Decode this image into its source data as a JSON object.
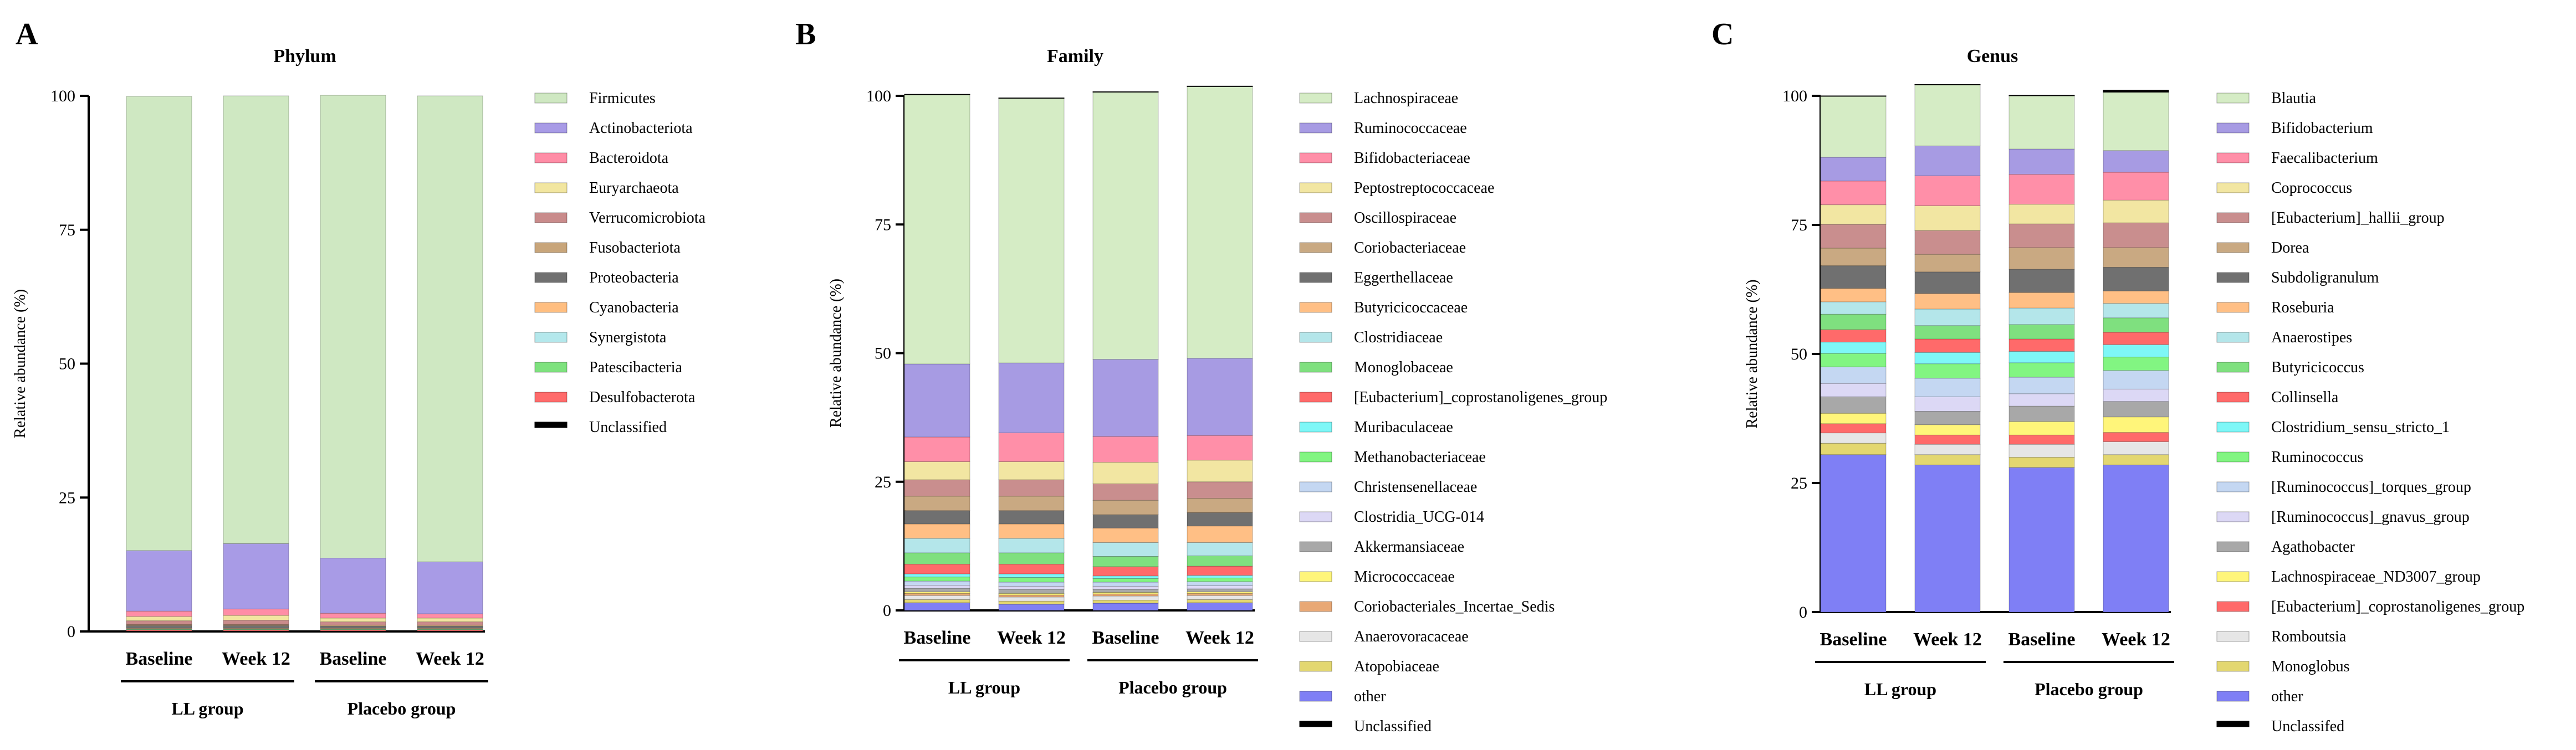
{
  "colors": {
    "Firmicutes": "#cfe8c2",
    "Actinobacteriota": "#a89be6",
    "Bacteroidota": "#ff8da6",
    "Euryarchaeota": "#f2e6a0",
    "Verrucomicrobiota": "#c98b8b",
    "Fusobacteriota": "#c8a57a",
    "Proteobacteria": "#707070",
    "Cyanobacteria": "#ffbe80",
    "Synergistota": "#b4e8ec",
    "Patescibacteria": "#7ee27e",
    "Desulfobacterota": "#ff6b6b",
    "Unclassified": "#000000",
    "Lachnospiraceae": "#d5ecc5",
    "Ruminococcaceae": "#a79be3",
    "Bifidobacteriaceae": "#ff8fa8",
    "Peptostreptococcaceae": "#f2e6a2",
    "Oscillospiraceae": "#c98e8e",
    "Coriobacteriaceae": "#c9a982",
    "Eggerthellaceae": "#707070",
    "Butyricicoccaceae": "#ffbf85",
    "Clostridiaceae": "#b4e6ea",
    "Monoglobaceae": "#7fe07f",
    "[Eubacterium]_coprostanoligenes_group": "#ff6a6a",
    "Muribaculaceae": "#7ef7f7",
    "Methanobacteriaceae": "#82f582",
    "Christensenellaceae": "#c4d7f2",
    "Clostridia_UCG-014": "#dcd8f5",
    "Akkermansiaceae": "#a8a8a8",
    "Micrococcaceae": "#fff57a",
    "Coriobacteriales_Incertae_Sedis": "#e8a875",
    "Anaerovoracaceae": "#e6e6e6",
    "Atopobiaceae": "#e3d770",
    "other": "#7f7ff5",
    "Blautia": "#d5ecc5",
    "Bifidobacterium": "#a79be3",
    "Faecalibacterium": "#ff8fa8",
    "Coprococcus": "#f2e6a2",
    "[Eubacterium]_hallii_group": "#c98e8e",
    "Dorea": "#c9a982",
    "Subdoligranulum": "#707070",
    "Roseburia": "#ffbf85",
    "Anaerostipes": "#b4e6ea",
    "Butyricicoccus": "#7fe07f",
    "Collinsella": "#ff6a6a",
    "Clostridium_sensu_stricto_1": "#7ef7f7",
    "Ruminococcus": "#82f582",
    "[Ruminococcus]_torques_group": "#c4d7f2",
    "[Ruminococcus]_gnavus_group": "#dcd8f5",
    "Agathobacter": "#a8a8a8",
    "Lachnospiraceae_ND3007_group": "#fff57a",
    "Romboutsia": "#e6e6e6",
    "Monoglobus": "#e3d770",
    "Unclassifed": "#000000"
  },
  "chart_data": [
    {
      "type": "bar",
      "stacked": true,
      "letter": "A",
      "title": "Phylum",
      "ylabel": "Relative abundance (%)",
      "ylim": [
        0,
        100
      ],
      "yticks": [
        "0",
        "25",
        "50",
        "75",
        "100"
      ],
      "categories": [
        "Baseline",
        "Week 12",
        "Baseline",
        "Week 12"
      ],
      "groups": [
        {
          "label": "LL group",
          "members": [
            0,
            1
          ]
        },
        {
          "label": "Placebo group",
          "members": [
            2,
            3
          ]
        }
      ],
      "series": [
        {
          "name": "Unclassified",
          "values": [
            0.1,
            0.1,
            0.1,
            0.1
          ]
        },
        {
          "name": "Desulfobacterota",
          "values": [
            0.2,
            0.2,
            0.2,
            0.2
          ]
        },
        {
          "name": "Patescibacteria",
          "values": [
            0.1,
            0.1,
            0.1,
            0.1
          ]
        },
        {
          "name": "Synergistota",
          "values": [
            0.1,
            0.1,
            0.1,
            0.1
          ]
        },
        {
          "name": "Cyanobacteria",
          "values": [
            0.1,
            0.1,
            0.1,
            0.1
          ]
        },
        {
          "name": "Proteobacteria",
          "values": [
            0.5,
            0.5,
            0.4,
            0.4
          ]
        },
        {
          "name": "Fusobacteriota",
          "values": [
            0.2,
            0.2,
            0.2,
            0.2
          ]
        },
        {
          "name": "Verrucomicrobiota",
          "values": [
            0.7,
            0.8,
            0.6,
            0.6
          ]
        },
        {
          "name": "Euryarchaeota",
          "values": [
            0.8,
            0.9,
            0.7,
            0.7
          ]
        },
        {
          "name": "Bacteroidota",
          "values": [
            1.0,
            1.2,
            0.9,
            0.8
          ]
        },
        {
          "name": "Actinobacteriota",
          "values": [
            11.3,
            12.2,
            10.3,
            9.7
          ]
        },
        {
          "name": "Firmicutes",
          "values": [
            84.8,
            83.6,
            86.4,
            87.0
          ]
        }
      ],
      "legend": [
        "Firmicutes",
        "Actinobacteriota",
        "Bacteroidota",
        "Euryarchaeota",
        "Verrucomicrobiota",
        "Fusobacteriota",
        "Proteobacteria",
        "Cyanobacteria",
        "Synergistota",
        "Patescibacteria",
        "Desulfobacterota",
        "Unclassified"
      ]
    },
    {
      "type": "bar",
      "stacked": true,
      "letter": "B",
      "title": "Family",
      "ylabel": "Relative abundance (%)",
      "ylim": [
        0,
        100
      ],
      "yticks": [
        "0",
        "25",
        "50",
        "75",
        "100"
      ],
      "categories": [
        "Baseline",
        "Week 12",
        "Baseline",
        "Week 12"
      ],
      "groups": [
        {
          "label": "LL group",
          "members": [
            0,
            1
          ]
        },
        {
          "label": "Placebo group",
          "members": [
            2,
            3
          ]
        }
      ],
      "series": [
        {
          "name": "other",
          "values": [
            1.5,
            1.2,
            1.4,
            1.5
          ]
        },
        {
          "name": "Atopobiaceae",
          "values": [
            0.6,
            0.6,
            0.6,
            0.6
          ]
        },
        {
          "name": "Anaerovoracaceae",
          "values": [
            0.8,
            0.8,
            0.8,
            0.8
          ]
        },
        {
          "name": "Coriobacteriales_Incertae_Sedis",
          "values": [
            0.4,
            0.4,
            0.4,
            0.4
          ]
        },
        {
          "name": "Micrococcaceae",
          "values": [
            0.3,
            0.3,
            0.3,
            0.3
          ]
        },
        {
          "name": "Akkermansiaceae",
          "values": [
            0.7,
            0.8,
            0.6,
            0.6
          ]
        },
        {
          "name": "Clostridia_UCG-014",
          "values": [
            0.6,
            0.6,
            0.6,
            0.6
          ]
        },
        {
          "name": "Christensenellaceae",
          "values": [
            0.8,
            0.8,
            0.8,
            0.8
          ]
        },
        {
          "name": "Methanobacteriaceae",
          "values": [
            0.8,
            0.9,
            0.7,
            0.7
          ]
        },
        {
          "name": "Muribaculaceae",
          "values": [
            0.6,
            0.7,
            0.5,
            0.5
          ]
        },
        {
          "name": "[Eubacterium]_coprostanoligenes_group",
          "values": [
            1.9,
            1.9,
            1.8,
            1.8
          ]
        },
        {
          "name": "Monoglobaceae",
          "values": [
            2.2,
            2.2,
            2.0,
            2.0
          ]
        },
        {
          "name": "Clostridiaceae",
          "values": [
            2.8,
            2.8,
            2.7,
            2.6
          ]
        },
        {
          "name": "Butyricicoccaceae",
          "values": [
            2.8,
            2.8,
            2.8,
            3.2
          ]
        },
        {
          "name": "Eggerthellaceae",
          "values": [
            2.6,
            2.6,
            2.6,
            2.6
          ]
        },
        {
          "name": "Coriobacteriaceae",
          "values": [
            2.8,
            2.8,
            2.8,
            2.8
          ]
        },
        {
          "name": "Oscillospiraceae",
          "values": [
            3.2,
            3.2,
            3.2,
            3.2
          ]
        },
        {
          "name": "Peptostreptococcaceae",
          "values": [
            3.5,
            3.5,
            4.2,
            4.2
          ]
        },
        {
          "name": "Bifidobacteriaceae",
          "values": [
            4.8,
            5.6,
            5.0,
            4.8
          ]
        },
        {
          "name": "Ruminococcaceae",
          "values": [
            14.2,
            13.6,
            15.0,
            15.0
          ]
        },
        {
          "name": "Lachnospiraceae",
          "values": [
            52.3,
            51.4,
            51.9,
            52.8
          ]
        },
        {
          "name": "Unclassified",
          "values": [
            0.1,
            0.1,
            0.1,
            0.1
          ]
        }
      ],
      "legend": [
        "Lachnospiraceae",
        "Ruminococcaceae",
        "Bifidobacteriaceae",
        "Peptostreptococcaceae",
        "Oscillospiraceae",
        "Coriobacteriaceae",
        "Eggerthellaceae",
        "Butyricicoccaceae",
        "Clostridiaceae",
        "Monoglobaceae",
        "[Eubacterium]_coprostanoligenes_group",
        "Muribaculaceae",
        "Methanobacteriaceae",
        "Christensenellaceae",
        "Clostridia_UCG-014",
        "Akkermansiaceae",
        "Micrococcaceae",
        "Coriobacteriales_Incertae_Sedis",
        "Anaerovoracaceae",
        "Atopobiaceae",
        "other",
        "Unclassified"
      ]
    },
    {
      "type": "bar",
      "stacked": true,
      "letter": "C",
      "title": "Genus",
      "ylabel": "Relative abundance (%)",
      "ylim": [
        0,
        100
      ],
      "yticks": [
        "0",
        "25",
        "50",
        "75",
        "100"
      ],
      "categories": [
        "Baseline",
        "Week 12",
        "Baseline",
        "Week 12"
      ],
      "groups": [
        {
          "label": "LL group",
          "members": [
            0,
            1
          ]
        },
        {
          "label": "Placebo group",
          "members": [
            2,
            3
          ]
        }
      ],
      "series": [
        {
          "name": "other",
          "values": [
            30.5,
            28.5,
            28.0,
            28.5
          ]
        },
        {
          "name": "Monoglobus",
          "values": [
            2.2,
            2.0,
            2.0,
            2.0
          ]
        },
        {
          "name": "Romboutsia",
          "values": [
            2.0,
            2.0,
            2.5,
            2.5
          ]
        },
        {
          "name": "[Eubacterium]_coprostanoligenes_group",
          "values": [
            1.8,
            1.8,
            1.8,
            1.8
          ]
        },
        {
          "name": "Lachnospiraceae_ND3007_group",
          "values": [
            2.0,
            2.0,
            2.6,
            3.0
          ]
        },
        {
          "name": "Agathobacter",
          "values": [
            3.2,
            2.6,
            3.0,
            3.0
          ]
        },
        {
          "name": "[Ruminococcus]_gnavus_group",
          "values": [
            2.6,
            2.8,
            2.4,
            2.4
          ]
        },
        {
          "name": "[Ruminococcus]_torques_group",
          "values": [
            3.2,
            3.6,
            3.2,
            3.6
          ]
        },
        {
          "name": "Ruminococcus",
          "values": [
            2.6,
            2.8,
            2.8,
            2.6
          ]
        },
        {
          "name": "Clostridium_sensu_stricto_1",
          "values": [
            2.2,
            2.2,
            2.2,
            2.4
          ]
        },
        {
          "name": "Collinsella",
          "values": [
            2.4,
            2.6,
            2.4,
            2.4
          ]
        },
        {
          "name": "Butyricicoccus",
          "values": [
            3.0,
            2.6,
            2.8,
            2.8
          ]
        },
        {
          "name": "Anaerostipes",
          "values": [
            2.4,
            3.2,
            3.2,
            2.8
          ]
        },
        {
          "name": "Roseburia",
          "values": [
            2.6,
            3.0,
            3.0,
            2.4
          ]
        },
        {
          "name": "Subdoligranulum",
          "values": [
            4.4,
            4.2,
            4.5,
            4.6
          ]
        },
        {
          "name": "Dorea",
          "values": [
            3.4,
            3.4,
            4.2,
            3.8
          ]
        },
        {
          "name": "[Eubacterium]_hallii_group",
          "values": [
            4.6,
            4.6,
            4.6,
            4.8
          ]
        },
        {
          "name": "Coprococcus",
          "values": [
            3.8,
            4.8,
            3.8,
            4.4
          ]
        },
        {
          "name": "Faecalibacterium",
          "values": [
            4.6,
            5.8,
            5.8,
            5.4
          ]
        },
        {
          "name": "Bifidobacterium",
          "values": [
            4.6,
            5.8,
            4.9,
            4.2
          ]
        },
        {
          "name": "Blautia",
          "values": [
            11.8,
            11.8,
            10.3,
            11.3
          ]
        },
        {
          "name": "Unclassifed",
          "values": [
            0.1,
            0.1,
            0.1,
            0.4
          ]
        }
      ],
      "legend": [
        "Blautia",
        "Bifidobacterium",
        "Faecalibacterium",
        "Coprococcus",
        "[Eubacterium]_hallii_group",
        "Dorea",
        "Subdoligranulum",
        "Roseburia",
        "Anaerostipes",
        "Butyricicoccus",
        "Collinsella",
        "Clostridium_sensu_stricto_1",
        "Ruminococcus",
        "[Ruminococcus]_torques_group",
        "[Ruminococcus]_gnavus_group",
        "Agathobacter",
        "Lachnospiraceae_ND3007_group",
        "[Eubacterium]_coprostanoligenes_group",
        "Romboutsia",
        "Monoglobus",
        "other",
        "Unclassifed"
      ]
    }
  ]
}
